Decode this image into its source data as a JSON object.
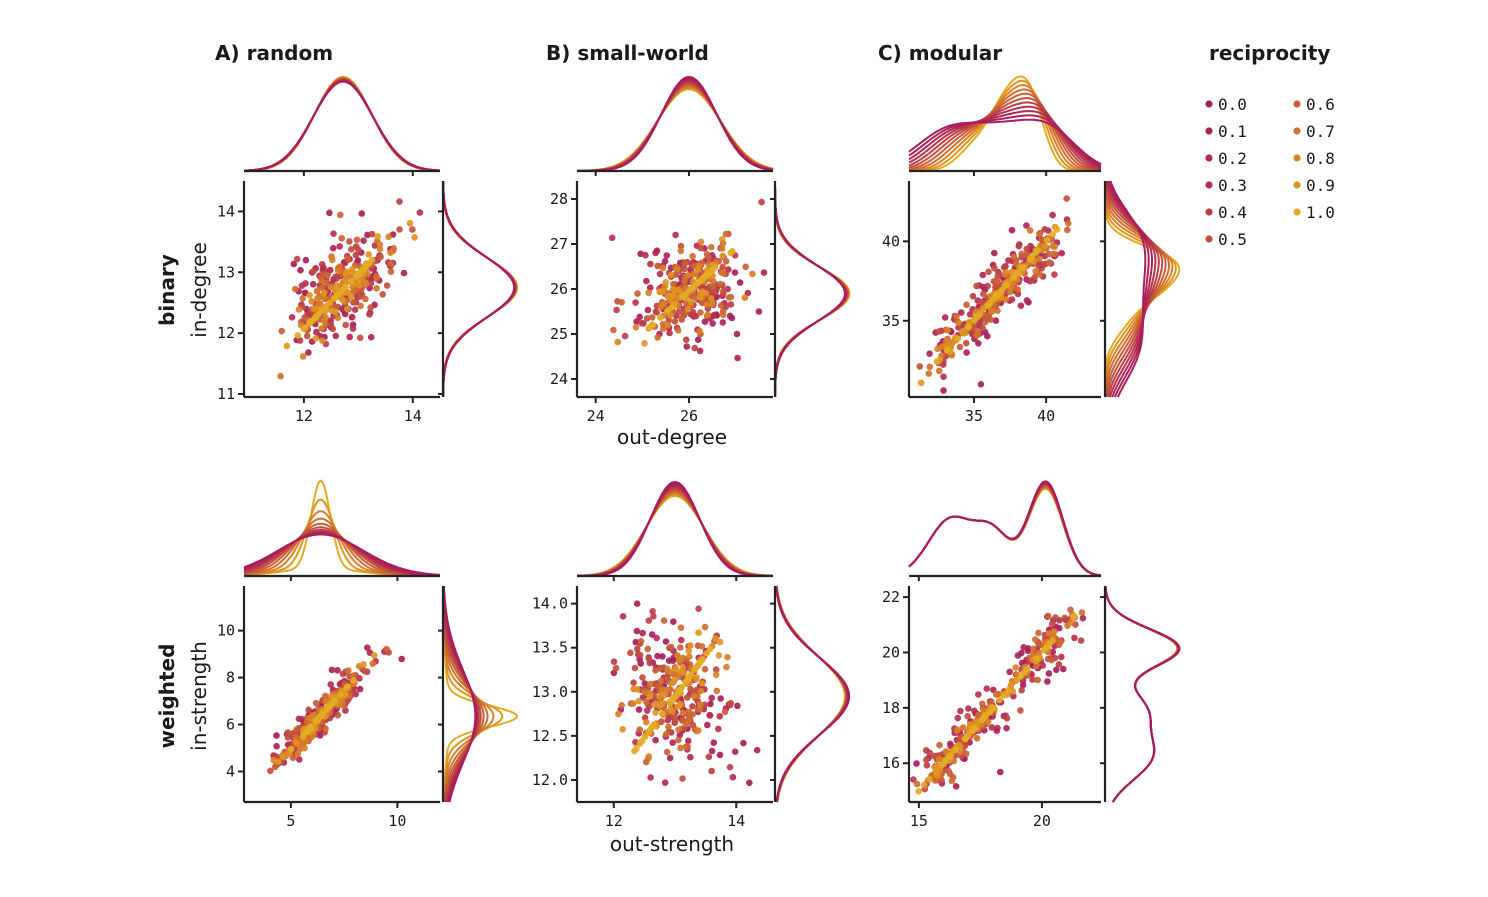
{
  "legend": {
    "title": "reciprocity",
    "entries": [
      {
        "label": "0.0",
        "color": "#a71d5d"
      },
      {
        "label": "0.1",
        "color": "#ab2058"
      },
      {
        "label": "0.2",
        "color": "#b02654"
      },
      {
        "label": "0.3",
        "color": "#b5314e"
      },
      {
        "label": "0.4",
        "color": "#bb4046"
      },
      {
        "label": "0.5",
        "color": "#c24f3e"
      },
      {
        "label": "0.6",
        "color": "#c95f36"
      },
      {
        "label": "0.7",
        "color": "#d06f2e"
      },
      {
        "label": "0.8",
        "color": "#d88127"
      },
      {
        "label": "0.9",
        "color": "#df9422"
      },
      {
        "label": "1.0",
        "color": "#e3ab24"
      }
    ]
  },
  "row_labels": {
    "binary": {
      "bold": "binary",
      "axis": "in-degree"
    },
    "weighted": {
      "bold": "weighted",
      "axis": "in-strength"
    }
  },
  "x_axis_titles": {
    "binary": "out-degree",
    "weighted": "out-strength"
  },
  "chart_data": [
    {
      "id": "A-binary",
      "type": "scatter",
      "title": "A) random",
      "row": "binary",
      "xlabel": "",
      "ylabel": "in-degree",
      "xlim": [
        10.9,
        14.5
      ],
      "ylim": [
        10.95,
        14.5
      ],
      "xticks": [
        {
          "v": 12,
          "label": "12"
        },
        {
          "v": 14,
          "label": "14"
        }
      ],
      "yticks": [
        {
          "v": 11,
          "label": "11"
        },
        {
          "v": 12,
          "label": "12"
        },
        {
          "v": 13,
          "label": "13"
        },
        {
          "v": 14,
          "label": "14"
        }
      ],
      "cloud": {
        "cx": 12.7,
        "cy": 12.7,
        "sx": 0.55,
        "sy": 0.5,
        "rho0": 0.35,
        "rho1": 1.0,
        "n": 320
      },
      "top_kde": {
        "mode": "gauss",
        "mu": 12.72,
        "sd": 0.55,
        "peak_var": 0.05,
        "invert": false
      },
      "right_kde": {
        "mode": "gauss",
        "mu": 12.75,
        "sd": 0.5,
        "peak_var": 0.04,
        "invert": false
      }
    },
    {
      "id": "B-binary",
      "type": "scatter",
      "title": "B) small-world",
      "row": "binary",
      "xlabel": "out-degree",
      "ylabel": "",
      "xlim": [
        23.6,
        27.8
      ],
      "ylim": [
        23.6,
        28.4
      ],
      "xticks": [
        {
          "v": 24,
          "label": "24"
        },
        {
          "v": 26,
          "label": "26"
        }
      ],
      "yticks": [
        {
          "v": 24,
          "label": "24"
        },
        {
          "v": 25,
          "label": "25"
        },
        {
          "v": 26,
          "label": "26"
        },
        {
          "v": 27,
          "label": "27"
        },
        {
          "v": 28,
          "label": "28"
        }
      ],
      "cloud": {
        "cx": 26.0,
        "cy": 25.95,
        "sx": 0.65,
        "sy": 0.62,
        "rho0": 0.0,
        "rho1": 1.0,
        "n": 320
      },
      "top_kde": {
        "mode": "gauss",
        "mu": 26.0,
        "sd": 0.65,
        "peak_var": 0.3,
        "invert": true
      },
      "right_kde": {
        "mode": "gauss",
        "mu": 25.9,
        "sd": 0.62,
        "peak_var": 0.06,
        "invert": false
      }
    },
    {
      "id": "C-binary",
      "type": "scatter",
      "title": "C) modular",
      "row": "binary",
      "xlabel": "",
      "ylabel": "",
      "xlim": [
        30.5,
        43.8
      ],
      "ylim": [
        30.2,
        43.8
      ],
      "xticks": [
        {
          "v": 35,
          "label": "35"
        },
        {
          "v": 40,
          "label": "40"
        }
      ],
      "yticks": [
        {
          "v": 35,
          "label": "35"
        },
        {
          "v": 40,
          "label": "40"
        }
      ],
      "cloud": {
        "cx": 37.0,
        "cy": 37.0,
        "sx": 2.6,
        "sy": 2.6,
        "rho0": 0.82,
        "rho1": 1.0,
        "n": 320
      },
      "top_kde": {
        "mode": "modular",
        "mu": 37.2,
        "sd": 2.8,
        "peak_var": 0.0,
        "invert": false
      },
      "right_kde": {
        "mode": "modular",
        "mu": 37.2,
        "sd": 2.8,
        "peak_var": 0.0,
        "invert": false
      }
    },
    {
      "id": "A-weighted",
      "type": "scatter",
      "title": "",
      "row": "weighted",
      "xlabel": "",
      "ylabel": "in-strength",
      "xlim": [
        2.8,
        12.0
      ],
      "ylim": [
        2.7,
        11.9
      ],
      "xticks": [
        {
          "v": 5,
          "label": "5"
        },
        {
          "v": 10,
          "label": "10"
        }
      ],
      "yticks": [
        {
          "v": 4,
          "label": "4"
        },
        {
          "v": 6,
          "label": "6"
        },
        {
          "v": 8,
          "label": "8"
        },
        {
          "v": 10,
          "label": "10"
        }
      ],
      "cloud": {
        "cx": 6.4,
        "cy": 6.35,
        "sx": 1.3,
        "sy": 1.3,
        "rho0": 0.93,
        "rho1": 1.0,
        "n": 320
      },
      "top_kde": {
        "mode": "peaked",
        "mu": 6.4,
        "sd": 0.45,
        "peak_var": 0.85,
        "invert": false
      },
      "right_kde": {
        "mode": "peaked",
        "mu": 6.35,
        "sd": 0.45,
        "peak_var": 0.85,
        "invert": false
      }
    },
    {
      "id": "B-weighted",
      "type": "scatter",
      "title": "",
      "row": "weighted",
      "xlabel": "out-strength",
      "ylabel": "",
      "xlim": [
        11.4,
        14.6
      ],
      "ylim": [
        11.75,
        14.2
      ],
      "xticks": [
        {
          "v": 12,
          "label": "12"
        },
        {
          "v": 14,
          "label": "14"
        }
      ],
      "yticks": [
        {
          "v": 12.0,
          "label": "12.0"
        },
        {
          "v": 12.5,
          "label": "12.5"
        },
        {
          "v": 13.0,
          "label": "13.0"
        },
        {
          "v": 13.5,
          "label": "13.5"
        },
        {
          "v": 14.0,
          "label": "14.0"
        }
      ],
      "cloud": {
        "cx": 13.0,
        "cy": 12.95,
        "sx": 0.48,
        "sy": 0.45,
        "rho0": -0.45,
        "rho1": 1.0,
        "n": 320
      },
      "top_kde": {
        "mode": "gauss",
        "mu": 13.0,
        "sd": 0.45,
        "peak_var": 0.35,
        "invert": true
      },
      "right_kde": {
        "mode": "gauss",
        "mu": 12.95,
        "sd": 0.45,
        "peak_var": 0.12,
        "invert": true
      }
    },
    {
      "id": "C-weighted",
      "type": "scatter",
      "title": "",
      "row": "weighted",
      "xlabel": "",
      "ylabel": "",
      "xlim": [
        14.6,
        22.4
      ],
      "ylim": [
        14.6,
        22.4
      ],
      "xticks": [
        {
          "v": 15,
          "label": "15"
        },
        {
          "v": 20,
          "label": "20"
        }
      ],
      "yticks": [
        {
          "v": 16,
          "label": "16"
        },
        {
          "v": 18,
          "label": "18"
        },
        {
          "v": 20,
          "label": "20"
        },
        {
          "v": 22,
          "label": "22"
        }
      ],
      "cloud": {
        "cx": 18.6,
        "cy": 18.6,
        "sx": 1.8,
        "sy": 1.8,
        "rho0": 0.9,
        "rho1": 1.0,
        "n": 320
      },
      "top_kde": {
        "mode": "trimodal",
        "mu": 18.6,
        "sd": 1.8,
        "peak_var": 0.08,
        "invert": false
      },
      "right_kde": {
        "mode": "trimodal",
        "mu": 18.6,
        "sd": 1.8,
        "peak_var": 0.03,
        "invert": false
      }
    }
  ]
}
